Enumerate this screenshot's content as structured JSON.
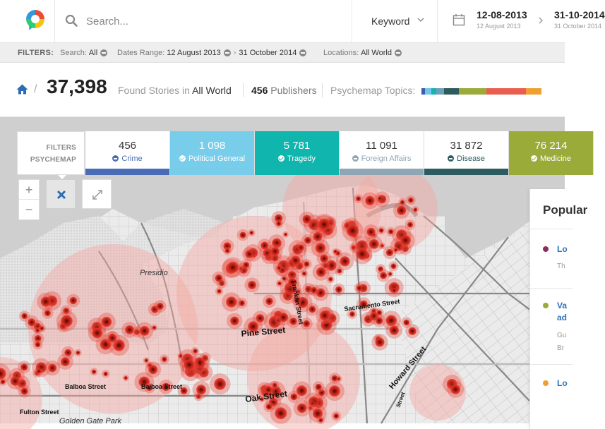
{
  "header": {
    "search_placeholder": "Search...",
    "keyword_label": "Keyword",
    "date_from": "12-08-2013",
    "date_from_sub": "12 August 2013",
    "date_to": "31-10-2014",
    "date_to_sub": "31 October 2014"
  },
  "filters": {
    "title": "FILTERS:",
    "search_label": "Search:",
    "search_value": "All",
    "dates_label": "Dates Range:",
    "dates_from": "12 August 2013",
    "dates_to": "31 October 2014",
    "locations_label": "Locations:",
    "locations_value": "All World"
  },
  "summary": {
    "count": "37,398",
    "found_prefix": "Found Stories in",
    "found_location": "All World",
    "publishers_count": "456",
    "publishers_label": "Publishers",
    "topics_label": "Psychemap Topics:",
    "topic_colors": [
      "#3a5fae",
      "#6ec6e8",
      "#18b2b0",
      "#6f9fb8",
      "#2d5b5e",
      "#9aab3a",
      "#e95e4e",
      "#f0a030"
    ],
    "topic_shares": [
      0.6,
      1.2,
      1.0,
      1.4,
      2.8,
      5.2,
      7.5,
      3.0
    ]
  },
  "psychemap": {
    "line1": "FILTERS",
    "line2": "PSYCHEMAP"
  },
  "categories": [
    {
      "count": "456",
      "label": "Crime",
      "state": "minus",
      "color": "#4a6bb5",
      "bg": "#ffffff"
    },
    {
      "count": "1 098",
      "label": "Political General",
      "state": "check",
      "color": "#ffffff",
      "bg": "#78cdeb"
    },
    {
      "count": "5 781",
      "label": "Tragedy",
      "state": "check",
      "color": "#ffffff",
      "bg": "#10b5ad"
    },
    {
      "count": "11 091",
      "label": "Foreign Affairs",
      "state": "minus",
      "color": "#8fa7b4",
      "bg": "#ffffff"
    },
    {
      "count": "31 872",
      "label": "Disease",
      "state": "minus",
      "color": "#2c5c5f",
      "bg": "#ffffff"
    },
    {
      "count": "76 214",
      "label": "Medicine",
      "state": "check",
      "color": "#ffffff",
      "bg": "#9aab3a"
    }
  ],
  "map": {
    "labels": [
      "Presidio",
      "Pine Street",
      "Franklin Street",
      "Sacramento Street",
      "Balboa Street",
      "Balboa Street",
      "Oak Street",
      "Fulton Street",
      "Howard Street",
      "Golden Gate Park",
      "Street"
    ]
  },
  "popular": {
    "title": "Popular",
    "items": [
      {
        "color": "#8e2d5c",
        "title": "Lo",
        "sub": "Th"
      },
      {
        "color": "#9aab3a",
        "title": "Va",
        "title2": "ad",
        "sub": "Gu",
        "sub2": "Br"
      },
      {
        "color": "#f0a030",
        "title": "Lo",
        "sub": ""
      }
    ]
  }
}
